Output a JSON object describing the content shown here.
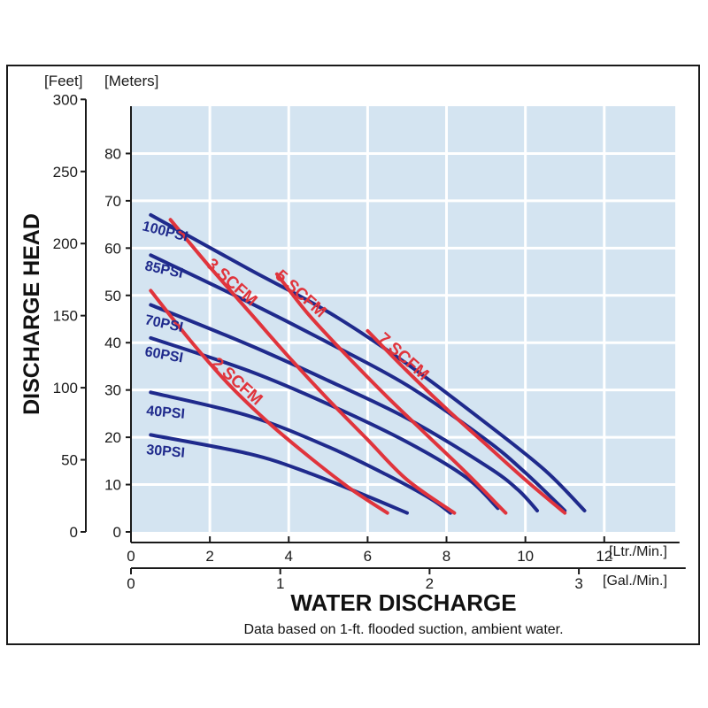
{
  "chart_data": {
    "type": "line",
    "ylabel": "DISCHARGE HEAD",
    "xlabel": "WATER DISCHARGE",
    "note": "Data based on 1-ft. flooded suction, ambient water.",
    "y_unit_left": "[Feet]",
    "y_unit_right": "[Meters]",
    "x_unit_primary": "[Ltr./Min.]",
    "x_unit_secondary": "[Gal./Min.]",
    "xlim": [
      0,
      13.8
    ],
    "ylim_meters": [
      0,
      90
    ],
    "ylim_feet": [
      0,
      300
    ],
    "x_ticks_primary": [
      "0",
      "2",
      "4",
      "6",
      "8",
      "10",
      "12"
    ],
    "x_ticks_secondary": [
      "0",
      "1",
      "2",
      "3"
    ],
    "y_ticks_meters": [
      "0",
      "10",
      "20",
      "30",
      "40",
      "50",
      "60",
      "70",
      "80"
    ],
    "y_ticks_feet": [
      "0",
      "50",
      "100",
      "150",
      "200",
      "250",
      "300"
    ],
    "grid": true,
    "colors": {
      "psi": "#1f2a8c",
      "scfm": "#e0343c",
      "plot_bg": "#d4e4f1",
      "grid": "#ffffff"
    },
    "series": [
      {
        "name": "100PSI",
        "group": "psi",
        "x": [
          0.5,
          3,
          5,
          7,
          9,
          10.5,
          11.5
        ],
        "y": [
          67,
          55.5,
          46.5,
          35.5,
          23,
          13,
          4.5
        ]
      },
      {
        "name": "85PSI",
        "group": "psi",
        "x": [
          0.5,
          3,
          5,
          7,
          9,
          10,
          11
        ],
        "y": [
          58.5,
          48.5,
          40,
          31,
          19.5,
          12.5,
          4.5
        ]
      },
      {
        "name": "70PSI",
        "group": "psi",
        "x": [
          0.5,
          3,
          5,
          7,
          9,
          9.8,
          10.3
        ],
        "y": [
          48,
          39.5,
          32,
          24,
          14,
          9,
          4.5
        ]
      },
      {
        "name": "60PSI",
        "group": "psi",
        "x": [
          0.5,
          3,
          5,
          7,
          8.5,
          9.3
        ],
        "y": [
          41,
          34,
          27,
          19,
          11.5,
          5
        ]
      },
      {
        "name": "40PSI",
        "group": "psi",
        "x": [
          0.5,
          3,
          5,
          6.5,
          7.6,
          8.1
        ],
        "y": [
          29.5,
          24.5,
          18,
          12,
          7,
          4
        ]
      },
      {
        "name": "30PSI",
        "group": "psi",
        "x": [
          0.5,
          3,
          4.5,
          6,
          7
        ],
        "y": [
          20.5,
          16.5,
          12.5,
          7.5,
          4
        ]
      },
      {
        "name": "3 SCFM",
        "group": "scfm",
        "x": [
          1,
          2,
          3,
          4,
          5,
          6,
          7,
          8.2
        ],
        "y": [
          66,
          56,
          46.5,
          37,
          28,
          19.5,
          11,
          4
        ]
      },
      {
        "name": "5 SCFM",
        "group": "scfm",
        "x": [
          3.7,
          4.5,
          5.5,
          6.5,
          7.5,
          8.5,
          9.5
        ],
        "y": [
          54.5,
          46,
          37,
          28.5,
          20.5,
          12.5,
          4
        ]
      },
      {
        "name": "7 SCFM",
        "group": "scfm",
        "x": [
          6,
          7,
          8,
          9,
          10,
          11
        ],
        "y": [
          42.5,
          34,
          26,
          18.5,
          11,
          4
        ]
      },
      {
        "name": "2 SCFM",
        "group": "scfm",
        "x": [
          0.5,
          1.5,
          2.5,
          3.5,
          4.5,
          5.5,
          6.5
        ],
        "y": [
          51,
          40.5,
          31,
          23,
          16,
          9.5,
          4
        ]
      }
    ]
  }
}
